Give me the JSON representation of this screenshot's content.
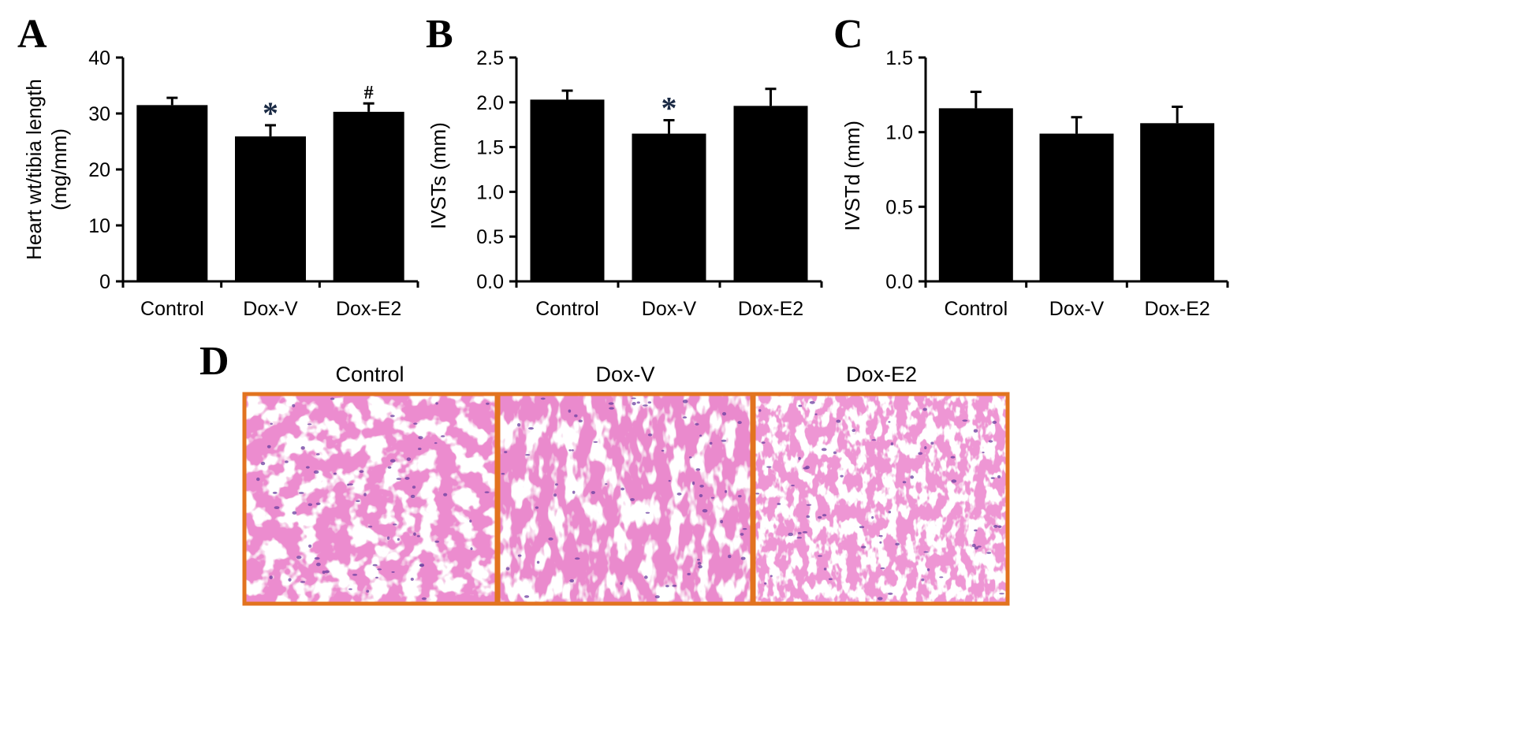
{
  "figure": {
    "histology": {
      "panel_letter": "D",
      "labels": [
        "Control",
        "Dox-V",
        "Dox-E2"
      ],
      "frame_color": "#e2731f",
      "tissue_color": "#ec8ccf",
      "nuclei_color": "#6b3fa0"
    }
  },
  "chart_data": [
    {
      "panel_letter": "A",
      "type": "bar",
      "categories": [
        "Control",
        "Dox-V",
        "Dox-E2"
      ],
      "values": [
        31.5,
        25.9,
        30.3
      ],
      "errors": [
        1.3,
        2.0,
        1.5
      ],
      "ylabel_lines": [
        "Heart wt/tibia length",
        "(mg/mm)"
      ],
      "ylim": [
        0,
        40
      ],
      "yticks": [
        "0",
        "10",
        "20",
        "30",
        "40"
      ],
      "markers": [
        "",
        "*",
        "#"
      ],
      "bar_color": "#000000",
      "grid": false
    },
    {
      "panel_letter": "B",
      "type": "bar",
      "categories": [
        "Control",
        "Dox-V",
        "Dox-E2"
      ],
      "values": [
        2.03,
        1.65,
        1.96
      ],
      "errors": [
        0.1,
        0.15,
        0.19
      ],
      "ylabel_lines": [
        "IVSTs (mm)"
      ],
      "ylim": [
        0,
        2.5
      ],
      "yticks": [
        "0.0",
        "0.5",
        "1.0",
        "1.5",
        "2.0",
        "2.5"
      ],
      "markers": [
        "",
        "*",
        ""
      ],
      "bar_color": "#000000",
      "grid": false
    },
    {
      "panel_letter": "C",
      "type": "bar",
      "categories": [
        "Control",
        "Dox-V",
        "Dox-E2"
      ],
      "values": [
        1.16,
        0.99,
        1.06
      ],
      "errors": [
        0.11,
        0.11,
        0.11
      ],
      "ylabel_lines": [
        "IVSTd (mm)"
      ],
      "ylim": [
        0,
        1.5
      ],
      "yticks": [
        "0.0",
        "0.5",
        "1.0",
        "1.5"
      ],
      "markers": [
        "",
        "",
        ""
      ],
      "bar_color": "#000000",
      "grid": false
    }
  ]
}
